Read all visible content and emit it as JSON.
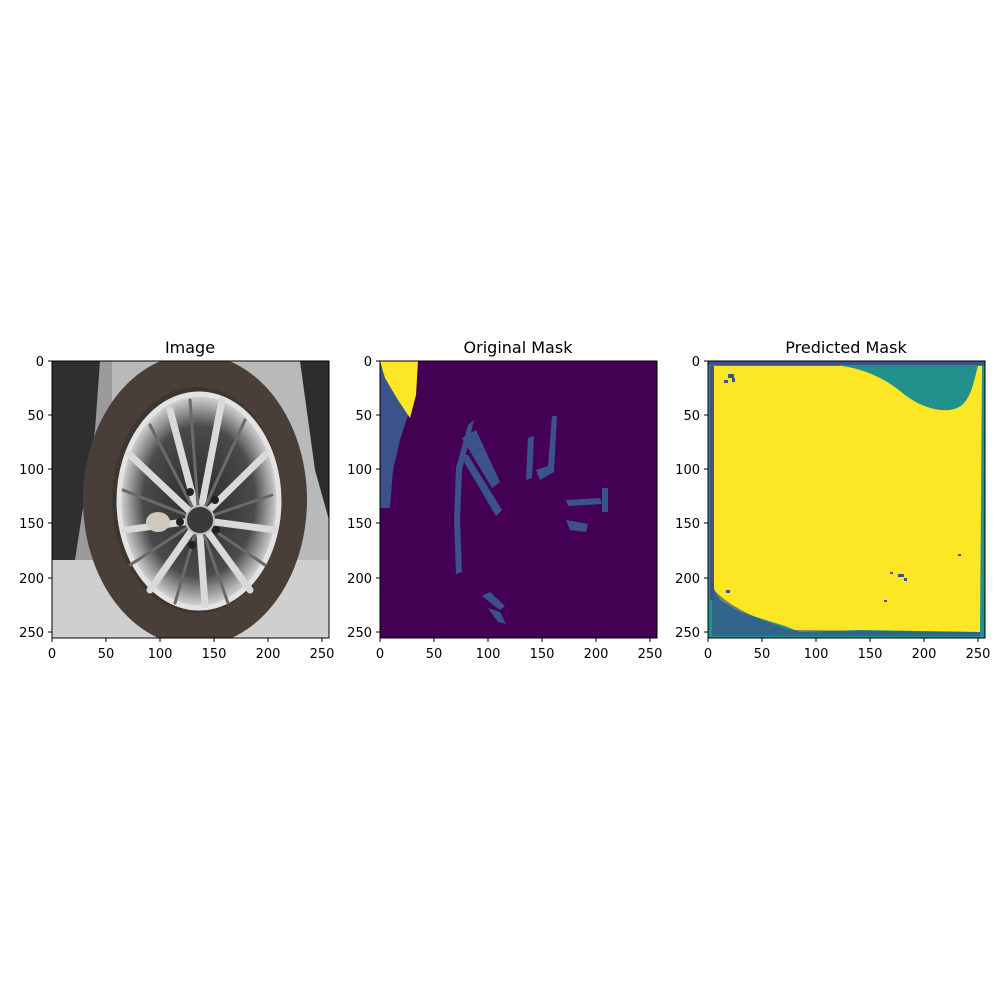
{
  "panels": [
    {
      "title": "Image"
    },
    {
      "title": "Original Mask"
    },
    {
      "title": "Predicted Mask"
    }
  ],
  "axes": {
    "x_ticks": [
      "0",
      "50",
      "100",
      "150",
      "200",
      "250"
    ],
    "y_ticks": [
      "0",
      "50",
      "100",
      "150",
      "200",
      "250"
    ]
  },
  "colors": {
    "viridis_dark": "#440154",
    "viridis_blue": "#3b528b",
    "viridis_teal": "#21918c",
    "viridis_yellow": "#fde725",
    "asphalt": "#c9c9c9",
    "tire": "#3f3631",
    "rim": "#dcdcdc",
    "spoke": "#6a6a6a"
  },
  "object_label": "car-wheel"
}
